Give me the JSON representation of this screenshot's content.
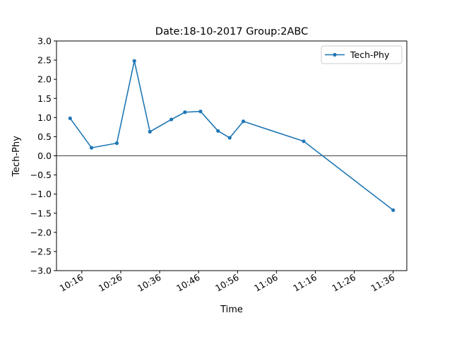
{
  "chart_data": {
    "type": "line",
    "title": "Date:18-10-2017 Group:2ABC",
    "xlabel": "Time",
    "ylabel": "Tech-Phy",
    "xlim": [
      "10:09.5",
      "11:39.5"
    ],
    "ylim": [
      -3.0,
      3.0
    ],
    "x_ticks": [
      "10:16",
      "10:26",
      "10:36",
      "10:46",
      "10:56",
      "11:06",
      "11:16",
      "11:26",
      "11:36"
    ],
    "y_ticks": [
      "3.0",
      "2.5",
      "2.0",
      "1.5",
      "1.0",
      "0.5",
      "0.0",
      "−0.5",
      "−1.0",
      "−1.5",
      "−2.0",
      "−2.5",
      "−3.0"
    ],
    "zero_line": true,
    "grid": false,
    "legend_position": "top-right",
    "series": [
      {
        "name": "Tech-Phy",
        "color": "#1f77b4",
        "x": [
          "10:13",
          "10:18.5",
          "10:25",
          "10:29.5",
          "10:33.5",
          "10:39",
          "10:42.5",
          "10:46.5",
          "10:51",
          "10:54",
          "10:57.5",
          "11:13",
          "11:36"
        ],
        "values": [
          0.98,
          0.21,
          0.33,
          2.48,
          0.63,
          0.95,
          1.14,
          1.16,
          0.65,
          0.47,
          0.9,
          0.38,
          -1.42
        ]
      }
    ]
  }
}
